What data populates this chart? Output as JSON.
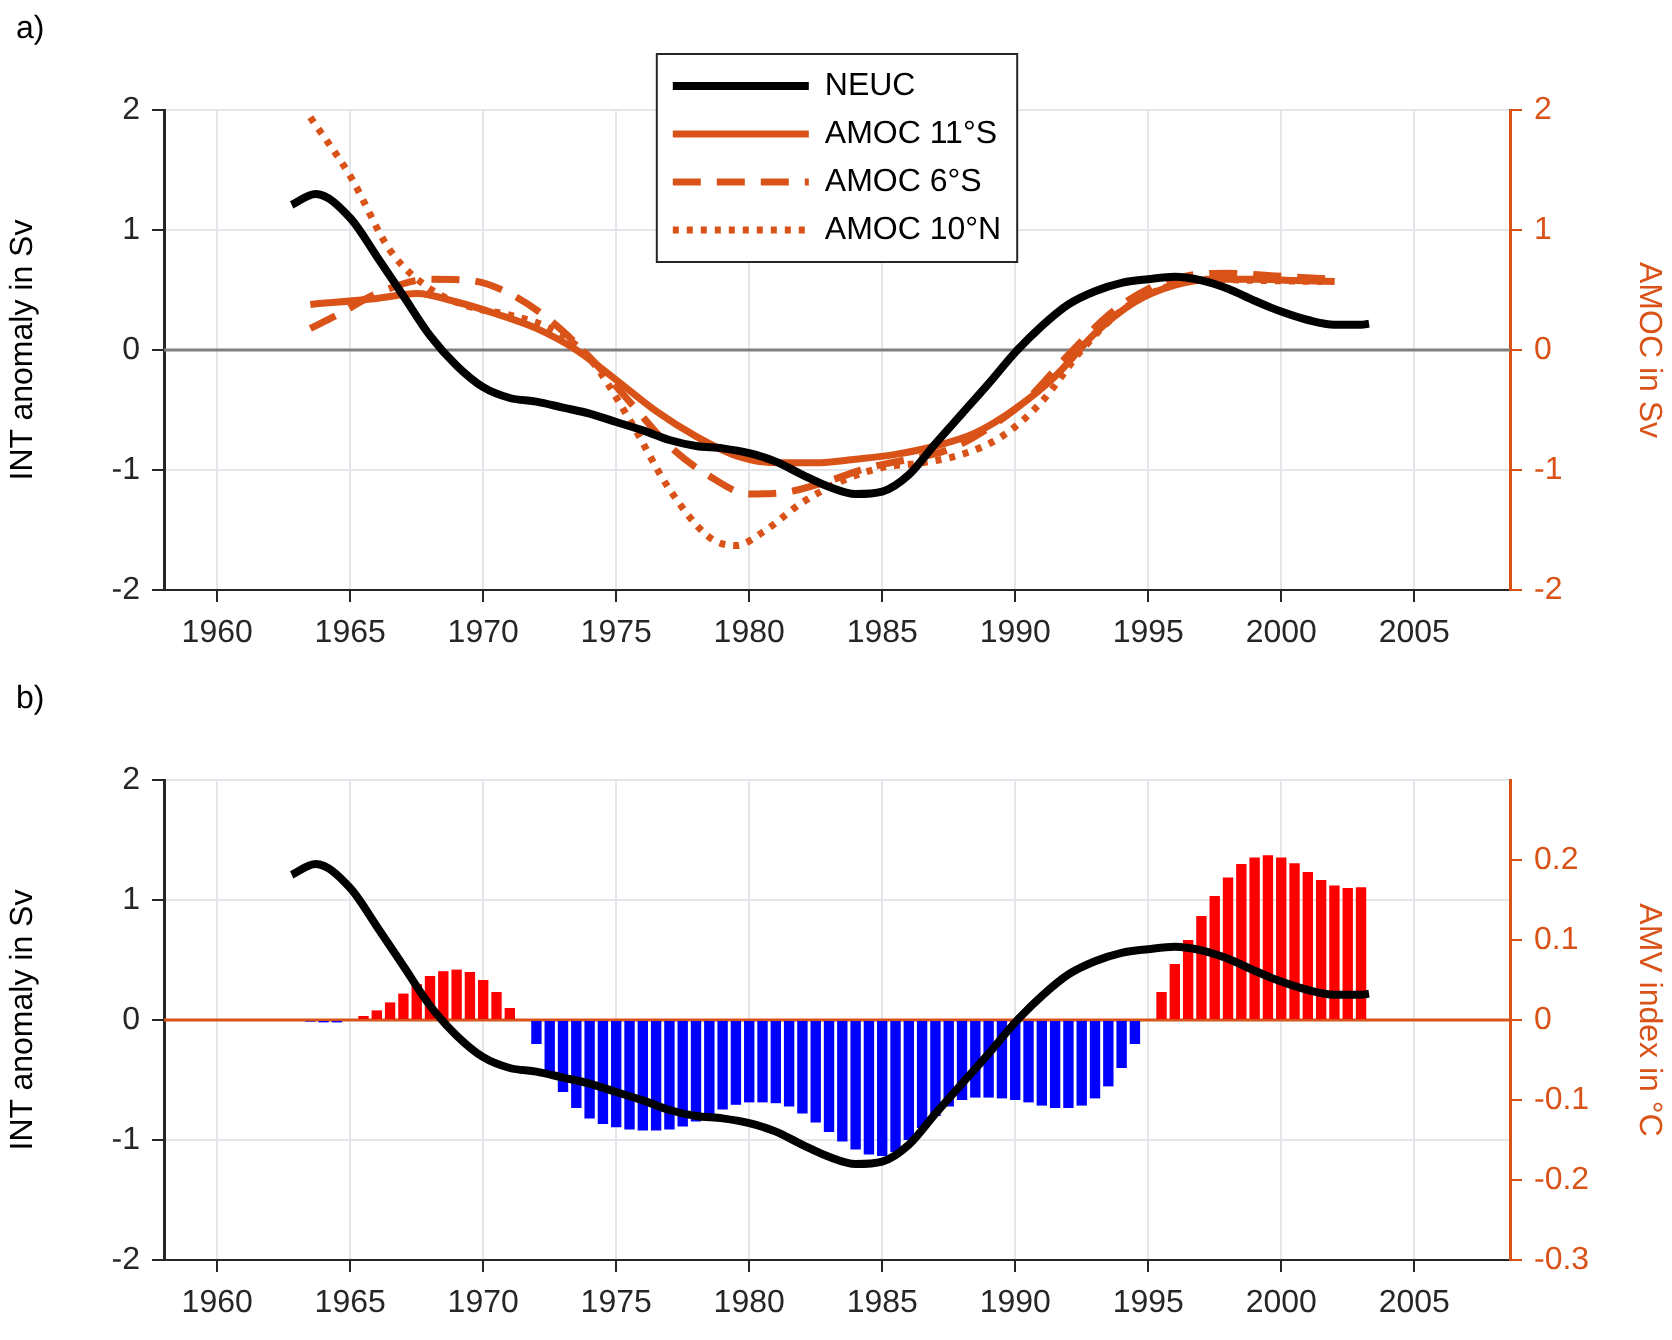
{
  "chart_data": [
    {
      "type": "line",
      "title": "a)",
      "ylabel": "INT anomaly in Sv",
      "y2label": "AMOC in Sv",
      "xlim": [
        1958,
        2008.6
      ],
      "xticks": [
        1960,
        1965,
        1970,
        1975,
        1980,
        1985,
        1990,
        1995,
        2000,
        2005
      ],
      "ylim": [
        -2,
        2
      ],
      "yticks": [
        -2,
        -1,
        0,
        1,
        2
      ],
      "y2lim": [
        -2,
        2
      ],
      "y2ticks": [
        -2,
        -1,
        0,
        1,
        2
      ],
      "grid": true,
      "legend": "top",
      "marker": "none",
      "ref_lines": [
        {
          "axis": "y",
          "value": 0
        }
      ],
      "series": [
        {
          "name": "NEUC",
          "color": "#000000",
          "line_style": "solid",
          "x": [
            1962.8,
            1963.7,
            1965,
            1966,
            1967,
            1968,
            1969,
            1970,
            1971,
            1972,
            1973,
            1974,
            1975,
            1976,
            1977,
            1978,
            1979,
            1980,
            1981,
            1982,
            1983,
            1984,
            1985,
            1986,
            1987,
            1988,
            1989,
            1990,
            1991,
            1992,
            1993,
            1994,
            1995,
            1996,
            1997,
            1998,
            1999,
            2000,
            2001,
            2002,
            2003,
            2003.3
          ],
          "values": [
            1.21,
            1.3,
            1.1,
            0.78,
            0.45,
            0.12,
            -0.13,
            -0.31,
            -0.4,
            -0.43,
            -0.48,
            -0.53,
            -0.6,
            -0.67,
            -0.75,
            -0.8,
            -0.82,
            -0.86,
            -0.93,
            -1.04,
            -1.14,
            -1.2,
            -1.18,
            -1.04,
            -0.78,
            -0.53,
            -0.28,
            -0.02,
            0.2,
            0.38,
            0.49,
            0.56,
            0.59,
            0.61,
            0.58,
            0.51,
            0.41,
            0.32,
            0.25,
            0.21,
            0.21,
            0.22
          ]
        },
        {
          "name": "AMOC 11°S",
          "color": "#d95319",
          "line_style": "solid",
          "axis": "y2",
          "x": [
            1963.5,
            1966,
            1967.5,
            1969,
            1970.5,
            1972,
            1973.5,
            1975,
            1976.5,
            1978,
            1979.5,
            1981,
            1982.5,
            1984,
            1985.5,
            1987,
            1988.5,
            1990,
            1991.5,
            1993,
            1994.5,
            1996,
            1997.5,
            1999,
            2000.5,
            2002
          ],
          "values": [
            0.38,
            0.43,
            0.47,
            0.4,
            0.3,
            0.18,
            0,
            -0.25,
            -0.51,
            -0.72,
            -0.88,
            -0.94,
            -0.94,
            -0.91,
            -0.87,
            -0.8,
            -0.69,
            -0.49,
            -0.22,
            0.14,
            0.4,
            0.54,
            0.59,
            0.59,
            0.58,
            0.57
          ]
        },
        {
          "name": "AMOC 6°S",
          "color": "#d95319",
          "line_style": "dashed",
          "axis": "y2",
          "x": [
            1963.5,
            1964.5,
            1966,
            1968,
            1969.5,
            1971,
            1972.5,
            1974,
            1975.5,
            1977,
            1978.5,
            1980,
            1981.5,
            1983,
            1984.5,
            1986,
            1987.5,
            1989,
            1990.5,
            1992,
            1993.5,
            1995,
            1996.5,
            1998,
            1999.5,
            2002
          ],
          "values": [
            0.18,
            0.29,
            0.47,
            0.59,
            0.58,
            0.47,
            0.25,
            -0.06,
            -0.43,
            -0.8,
            -1.05,
            -1.2,
            -1.18,
            -1.09,
            -0.98,
            -0.91,
            -0.83,
            -0.65,
            -0.4,
            -0.04,
            0.29,
            0.51,
            0.62,
            0.64,
            0.62,
            0.59
          ]
        },
        {
          "name": "AMOC 10°N",
          "color": "#d95319",
          "line_style": "dotted",
          "axis": "y2",
          "x": [
            1963.5,
            1965,
            1966.5,
            1968,
            1969.5,
            1971,
            1972.5,
            1974,
            1975.5,
            1977,
            1978.5,
            1979.5,
            1980.5,
            1982,
            1983.5,
            1985,
            1986.5,
            1988,
            1989.5,
            1991,
            1992.5,
            1994,
            1995.5,
            1997,
            1999,
            2002
          ],
          "values": [
            1.94,
            1.45,
            0.83,
            0.51,
            0.36,
            0.29,
            0.18,
            -0.07,
            -0.58,
            -1.16,
            -1.56,
            -1.63,
            -1.52,
            -1.27,
            -1.09,
            -0.98,
            -0.94,
            -0.87,
            -0.72,
            -0.43,
            0,
            0.33,
            0.51,
            0.59,
            0.58,
            0.57
          ]
        }
      ]
    },
    {
      "type": "line",
      "title": "b)",
      "ylabel": "INT anomaly in Sv",
      "y2label": "AMV index in °C",
      "xlim": [
        1958,
        2008.6
      ],
      "xticks": [
        1960,
        1965,
        1970,
        1975,
        1980,
        1985,
        1990,
        1995,
        2000,
        2005
      ],
      "ylim": [
        -2,
        2
      ],
      "yticks": [
        -2,
        -1,
        0,
        1,
        2
      ],
      "y2lim": [
        -0.3,
        0.3
      ],
      "y2ticks": [
        -0.3,
        -0.2,
        -0.1,
        0,
        0.1,
        0.2
      ],
      "grid": true,
      "marker": "none",
      "ref_lines": [
        {
          "axis": "y2",
          "value": 0
        }
      ],
      "series": [
        {
          "type": "bar",
          "axis": "y2",
          "color": "#ff0000",
          "x": [
            1965.5,
            1966,
            1966.5,
            1967,
            1967.5,
            1968,
            1968.5,
            1969,
            1969.5,
            1970,
            1970.5,
            1971,
            1995.5,
            1996,
            1996.5,
            1997,
            1997.5,
            1998,
            1998.5,
            1999,
            1999.5,
            2000,
            2000.5,
            2001,
            2001.5,
            2002,
            2002.5,
            2003
          ],
          "values": [
            0.005,
            0.012,
            0.022,
            0.033,
            0.045,
            0.055,
            0.061,
            0.063,
            0.06,
            0.05,
            0.035,
            0.015,
            0.035,
            0.07,
            0.1,
            0.13,
            0.155,
            0.178,
            0.195,
            0.203,
            0.206,
            0.203,
            0.196,
            0.185,
            0.175,
            0.168,
            0.165,
            0.166
          ]
        },
        {
          "type": "bar",
          "axis": "y2",
          "color": "#0000ff",
          "x": [
            1963.5,
            1964,
            1964.5,
            1965,
            1972,
            1972.5,
            1973,
            1973.5,
            1974,
            1974.5,
            1975,
            1975.5,
            1976,
            1976.5,
            1977,
            1977.5,
            1978,
            1978.5,
            1979,
            1979.5,
            1980,
            1980.5,
            1981,
            1981.5,
            1982,
            1982.5,
            1983,
            1983.5,
            1984,
            1984.5,
            1985,
            1985.5,
            1986,
            1986.5,
            1987,
            1987.5,
            1988,
            1988.5,
            1989,
            1989.5,
            1990,
            1990.5,
            1991,
            1991.5,
            1992,
            1992.5,
            1993,
            1993.5,
            1994,
            1994.5
          ],
          "values": [
            -0.002,
            -0.003,
            -0.003,
            null,
            -0.03,
            -0.065,
            -0.09,
            -0.11,
            -0.123,
            -0.13,
            -0.134,
            -0.137,
            -0.138,
            -0.138,
            -0.137,
            -0.133,
            -0.127,
            -0.12,
            -0.112,
            -0.106,
            -0.103,
            -0.103,
            -0.104,
            -0.108,
            -0.117,
            -0.128,
            -0.14,
            -0.152,
            -0.162,
            -0.168,
            -0.17,
            -0.165,
            -0.15,
            -0.135,
            -0.12,
            -0.108,
            -0.1,
            -0.097,
            -0.097,
            -0.098,
            -0.1,
            -0.103,
            -0.107,
            -0.11,
            -0.11,
            -0.107,
            -0.098,
            -0.083,
            -0.06,
            -0.03
          ]
        },
        {
          "color": "#000000",
          "line_style": "solid",
          "x": [
            1962.8,
            1963.7,
            1965,
            1966,
            1967,
            1968,
            1969,
            1970,
            1971,
            1972,
            1973,
            1974,
            1975,
            1976,
            1977,
            1978,
            1979,
            1980,
            1981,
            1982,
            1983,
            1984,
            1985,
            1986,
            1987,
            1988,
            1989,
            1990,
            1991,
            1992,
            1993,
            1994,
            1995,
            1996,
            1997,
            1998,
            1999,
            2000,
            2001,
            2002,
            2003,
            2003.3
          ],
          "values": [
            1.21,
            1.3,
            1.1,
            0.78,
            0.45,
            0.12,
            -0.13,
            -0.31,
            -0.4,
            -0.43,
            -0.48,
            -0.53,
            -0.6,
            -0.67,
            -0.75,
            -0.8,
            -0.82,
            -0.86,
            -0.93,
            -1.04,
            -1.14,
            -1.2,
            -1.18,
            -1.04,
            -0.78,
            -0.53,
            -0.28,
            -0.02,
            0.2,
            0.38,
            0.49,
            0.56,
            0.59,
            0.61,
            0.58,
            0.51,
            0.41,
            0.32,
            0.25,
            0.21,
            0.21,
            0.22
          ]
        }
      ]
    }
  ]
}
